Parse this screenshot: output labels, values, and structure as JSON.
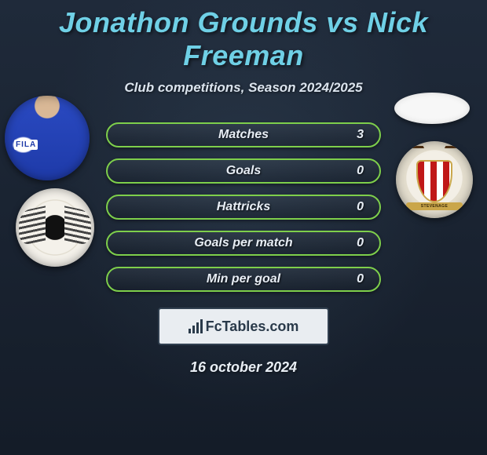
{
  "title": "Jonathon Grounds vs Nick Freeman",
  "subtitle": "Club competitions, Season 2024/2025",
  "stats": [
    {
      "label": "Matches",
      "value": "3"
    },
    {
      "label": "Goals",
      "value": "0"
    },
    {
      "label": "Hattricks",
      "value": "0"
    },
    {
      "label": "Goals per match",
      "value": "0"
    },
    {
      "label": "Min per goal",
      "value": "0"
    }
  ],
  "brand": "FcTables.com",
  "date": "16 october 2024",
  "crest_right_banner": "STEVENAGE",
  "colors": {
    "title": "#6fd0e6",
    "pill_border": "#7ecf4b",
    "background_top": "#1f2a3a",
    "background_bottom": "#141c28",
    "text": "#e8eef5",
    "brand_box_bg": "#e9edf1",
    "brand_text": "#2a3a4a"
  }
}
